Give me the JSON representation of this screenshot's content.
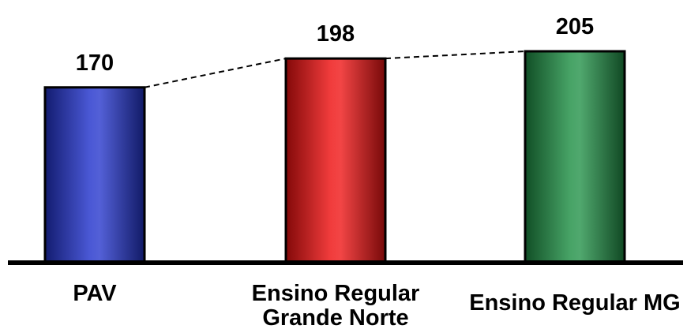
{
  "chart_data": {
    "type": "bar",
    "title": "",
    "xlabel": "",
    "ylabel": "",
    "categories": [
      [
        "PAV"
      ],
      [
        "Ensino Regular",
        "Grande Norte"
      ],
      [
        "Ensino Regular MG"
      ]
    ],
    "values": [
      170,
      198,
      205
    ],
    "data_labels": [
      "170",
      "198",
      "205"
    ],
    "colors": [
      "#2233cc",
      "#ee1111",
      "#1f8f45"
    ],
    "connector_line": "dashed",
    "grid": false,
    "legend": "none"
  }
}
